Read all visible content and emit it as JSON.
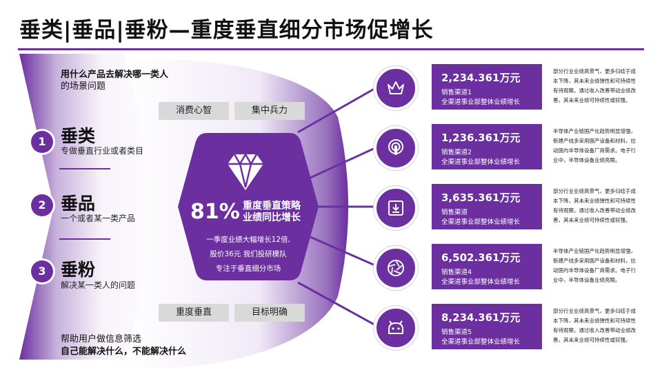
{
  "title": "垂类|垂品|垂粉—重度垂直细分市场促增长",
  "colors": {
    "accent": "#6b2fa0",
    "pill_bg": "#d9d9d9"
  },
  "left": {
    "top_note_line1": "用什么产品去解决哪一类人",
    "top_note_line2": "的场景问题",
    "categories": [
      {
        "num": "1",
        "title": "垂类",
        "sub": "专做垂直行业或者类目"
      },
      {
        "num": "2",
        "title": "垂品",
        "sub": "一个或者某一类产品"
      },
      {
        "num": "3",
        "title": "垂粉",
        "sub": "解决某一类人的问题"
      }
    ],
    "bottom_note_line1": "帮助用户做信息筛选",
    "bottom_note_line2": "自己能解决什么，不能解决什么"
  },
  "pills": {
    "top_left": "消费心智",
    "top_right": "集中兵力",
    "bottom_left": "重度垂直",
    "bottom_right": "目标明确"
  },
  "center": {
    "icon": "diamond-icon",
    "percent": "81%",
    "head_line1": "重度垂直策略",
    "head_line2": "业绩同比增长",
    "body_line1": "一季度业绩大幅增长12倍,",
    "body_line2": "股价36元 我们投研模队",
    "body_line3": "专注于垂直细分市场"
  },
  "channels": [
    {
      "icon": "crown-icon",
      "amount": "2,234.361万元",
      "l1": "销售渠道1",
      "l2": "全渠道事业部整体业绩增长",
      "desc": [
        "部分行业业绩高景气，更多归结于成",
        "本下降，其未来业绩弹性和可持续性",
        "有待观察。通过收入改善带动业绩改",
        "善，其未来业绩可持续性或较强。"
      ]
    },
    {
      "icon": "podcast-icon",
      "amount": "1,236.361万元",
      "l1": "销售渠道2",
      "l2": "全渠道事业部整体业绩增长",
      "desc": [
        "半导体产业链国产化趋势明显增强，",
        "新建产线多采用国产设备和材料，拉",
        "动国内半导体设备厂商需求。电子行",
        "业中，半导体设备业绩亮眼。"
      ]
    },
    {
      "icon": "download-icon",
      "amount": "3,635.361万元",
      "l1": "销售渠道",
      "l2": "全渠道事业部整体业绩增长",
      "desc": [
        "部分行业业绩高景气，更多归结于成",
        "本下降，其未来业绩弹性和可持续性",
        "有待观察。通过收入改善带动业绩改",
        "善，其未来业绩可持续性或较强。"
      ]
    },
    {
      "icon": "aperture-icon",
      "amount": "6,502.361万元",
      "l1": "销售渠道4",
      "l2": "全渠道事业部整体业绩增长",
      "desc": [
        "半导体产业链国产化趋势明显增强，",
        "新建产线多采用国产设备和材料，拉",
        "动国内半导体设备厂商需求。电子行",
        "业中，半导体设备业绩亮眼。"
      ]
    },
    {
      "icon": "android-icon",
      "amount": "8,234.361万元",
      "l1": "销售渠道5",
      "l2": "全渠道事业部整体业绩增长",
      "desc": [
        "部分行业业绩高景气，更多归结于成",
        "本下降，其未来业绩弹性和可持续性",
        "有待观察。通过收入改善带动业绩改",
        "善，其未来业绩可持续性或较强。"
      ]
    }
  ]
}
